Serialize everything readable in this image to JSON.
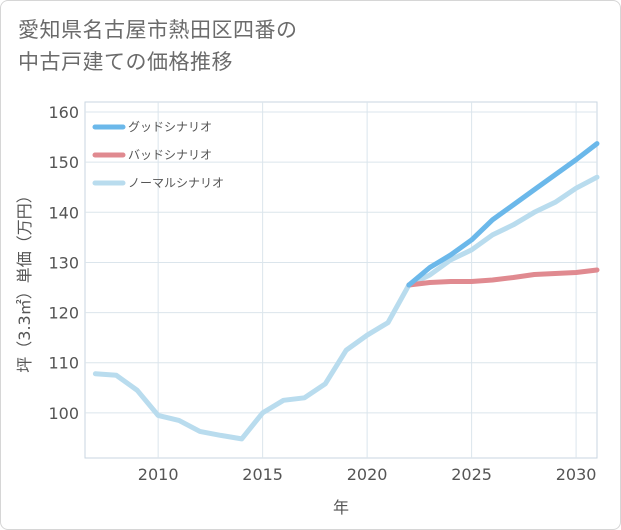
{
  "title": {
    "line1": "愛知県名古屋市熱田区四番の",
    "line2": "中古戸建ての価格推移"
  },
  "chart_data": {
    "type": "line",
    "xlabel": "年",
    "ylabel": "坪（3.3㎡）単価（万円）",
    "xlim": [
      2006.5,
      2031
    ],
    "ylim": [
      91,
      162
    ],
    "x_ticks": [
      2010,
      2015,
      2020,
      2025,
      2030
    ],
    "y_ticks": [
      100,
      110,
      120,
      130,
      140,
      150,
      160
    ],
    "grid": true,
    "legend_position": "top-left",
    "series": [
      {
        "name": "グッドシナリオ",
        "color": "#6bb8ea",
        "x": [
          2022,
          2023,
          2024,
          2025,
          2026,
          2027,
          2028,
          2029,
          2030,
          2031
        ],
        "y": [
          125.5,
          129,
          131.5,
          134.5,
          138.5,
          141.5,
          144.5,
          147.5,
          150.5,
          153.7
        ]
      },
      {
        "name": "バッドシナリオ",
        "color": "#e08a90",
        "x": [
          2022,
          2023,
          2024,
          2025,
          2026,
          2027,
          2028,
          2029,
          2030,
          2031
        ],
        "y": [
          125.5,
          126.0,
          126.2,
          126.2,
          126.5,
          127.0,
          127.6,
          127.8,
          128.0,
          128.5
        ]
      },
      {
        "name": "ノーマルシナリオ",
        "color": "#b9dcee",
        "x": [
          2007,
          2008,
          2009,
          2010,
          2011,
          2012,
          2013,
          2014,
          2015,
          2016,
          2017,
          2018,
          2019,
          2020,
          2021,
          2022,
          2023,
          2024,
          2025,
          2026,
          2027,
          2028,
          2029,
          2030,
          2031
        ],
        "y": [
          107.8,
          107.5,
          104.5,
          99.5,
          98.5,
          96.3,
          95.5,
          94.8,
          100.0,
          102.5,
          103.0,
          105.8,
          112.5,
          115.5,
          118.0,
          125.5,
          127.5,
          130.5,
          132.5,
          135.5,
          137.5,
          140.0,
          142.0,
          144.8,
          147.0
        ]
      }
    ]
  }
}
